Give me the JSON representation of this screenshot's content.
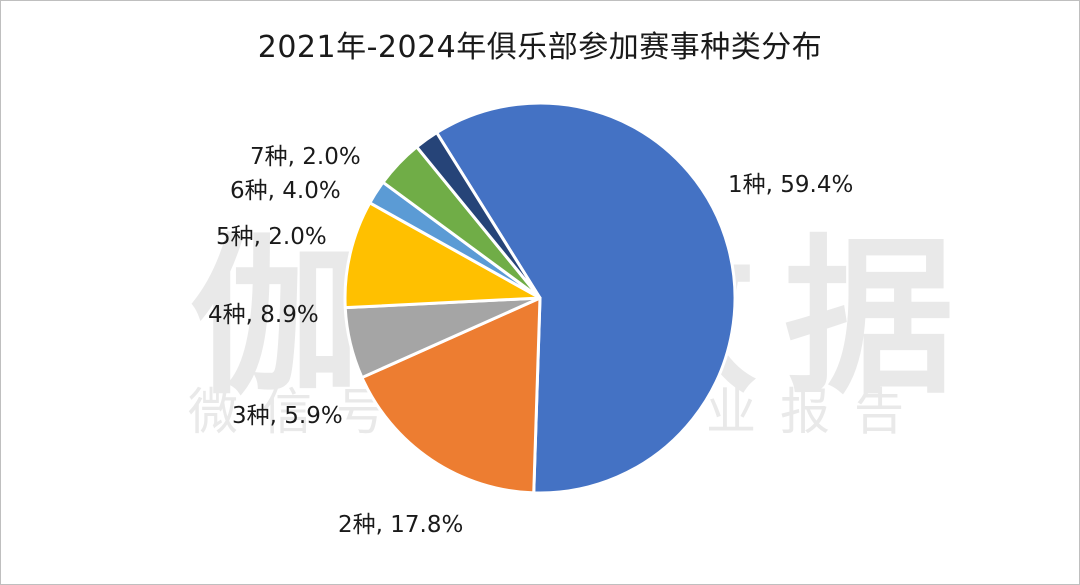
{
  "title": "2021年-2024年俱乐部参加赛事种类分布",
  "watermark": {
    "main": "伽马数据",
    "sub": "微信号：游戏产业报告"
  },
  "chart_data": {
    "type": "pie",
    "title": "2021年-2024年俱乐部参加赛事种类分布",
    "slices": [
      {
        "label": "1种",
        "value": 59.4,
        "text": "1种, 59.4%",
        "color": "#4472C4"
      },
      {
        "label": "2种",
        "value": 17.8,
        "text": "2种, 17.8%",
        "color": "#ED7D31"
      },
      {
        "label": "3种",
        "value": 5.9,
        "text": "3种, 5.9%",
        "color": "#A5A5A5"
      },
      {
        "label": "4种",
        "value": 8.9,
        "text": "4种, 8.9%",
        "color": "#FFC000"
      },
      {
        "label": "5种",
        "value": 2.0,
        "text": "5种, 2.0%",
        "color": "#5B9BD5"
      },
      {
        "label": "6种",
        "value": 4.0,
        "text": "6种, 4.0%",
        "color": "#70AD47"
      },
      {
        "label": "7种",
        "value": 2.0,
        "text": "7种, 2.0%",
        "color": "#264478"
      }
    ]
  }
}
